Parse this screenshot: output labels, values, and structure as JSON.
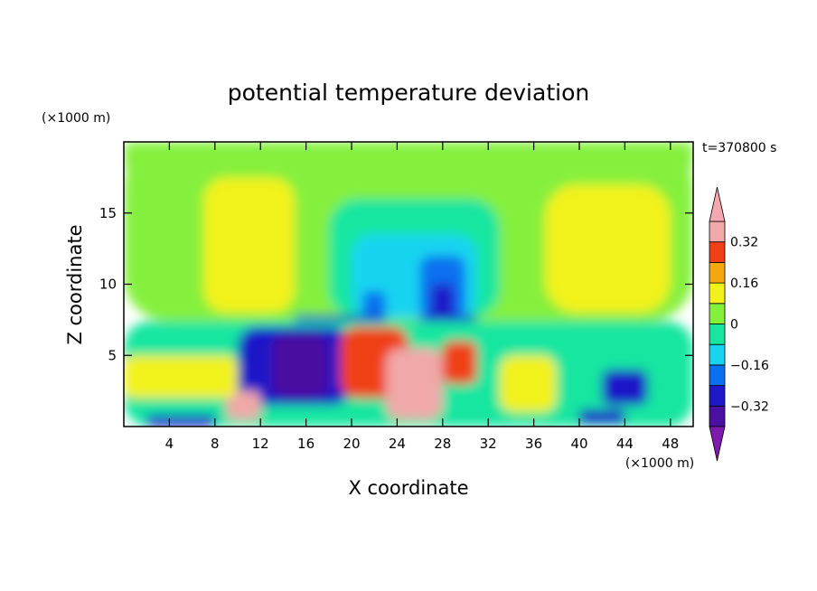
{
  "chart_data": {
    "type": "heatmap",
    "title": "potential temperature deviation",
    "xlabel": "X coordinate",
    "ylabel": "Z coordinate",
    "x_unit": "(×1000 m)",
    "y_unit": "(×1000 m)",
    "time_label": "t=370800 s",
    "xlim": [
      0,
      50
    ],
    "ylim": [
      0,
      20
    ],
    "x_ticks": [
      4,
      8,
      12,
      16,
      20,
      24,
      28,
      32,
      36,
      40,
      44,
      48
    ],
    "y_ticks": [
      5,
      10,
      15
    ],
    "colorbar": {
      "levels": [
        -0.4,
        -0.32,
        -0.24,
        -0.16,
        -0.08,
        0,
        0.08,
        0.16,
        0.24,
        0.32,
        0.4
      ],
      "tick_labels": [
        "0.32",
        "0.16",
        "0",
        "−0.16",
        "−0.32"
      ],
      "tick_values": [
        0.32,
        0.16,
        0,
        -0.16,
        -0.32
      ],
      "colors": [
        "#7e1ab0",
        "#4a10a0",
        "#1f18c8",
        "#0b70f0",
        "#18d4f0",
        "#18e6a0",
        "#84f03c",
        "#f2f21a",
        "#f5a80e",
        "#f04018",
        "#f0a8a8",
        "#f5a8b0"
      ],
      "extend": "both"
    },
    "regions": [
      {
        "x0": 0,
        "x1": 50,
        "z0": 7.4,
        "z1": 20,
        "value": 0.04
      },
      {
        "x0": 0,
        "x1": 50,
        "z0": 18,
        "z1": 20,
        "value": 0.02
      },
      {
        "x0": 7,
        "x1": 15,
        "z0": 8,
        "z1": 17.5,
        "value": 0.12
      },
      {
        "x0": 37,
        "x1": 48,
        "z0": 8,
        "z1": 17,
        "value": 0.1
      },
      {
        "x0": 18,
        "x1": 33,
        "z0": 7.6,
        "z1": 16,
        "value": -0.02
      },
      {
        "x0": 20,
        "x1": 31,
        "z0": 7.6,
        "z1": 13.5,
        "value": -0.12
      },
      {
        "x0": 26,
        "x1": 30,
        "z0": 7.6,
        "z1": 12,
        "value": -0.22
      },
      {
        "x0": 27,
        "x1": 29,
        "z0": 7.6,
        "z1": 10,
        "value": -0.3
      },
      {
        "x0": 21,
        "x1": 23,
        "z0": 7.6,
        "z1": 9.5,
        "value": -0.22
      },
      {
        "x0": 15,
        "x1": 23,
        "z0": 7.4,
        "z1": 7.8,
        "value": -0.3
      },
      {
        "x0": 26,
        "x1": 31,
        "z0": 7.4,
        "z1": 7.8,
        "value": -0.3
      },
      {
        "x0": 0,
        "x1": 50,
        "z0": 0,
        "z1": 7.4,
        "value": -0.05
      },
      {
        "x0": 10,
        "x1": 20,
        "z0": 1.5,
        "z1": 7,
        "value": -0.3
      },
      {
        "x0": 13,
        "x1": 18,
        "z0": 2,
        "z1": 6.5,
        "value": -0.36
      },
      {
        "x0": 19,
        "x1": 25,
        "z0": 2,
        "z1": 7,
        "value": 0.3
      },
      {
        "x0": 23,
        "x1": 28,
        "z0": 0.5,
        "z1": 5.5,
        "value": 0.38
      },
      {
        "x0": 28,
        "x1": 31,
        "z0": 3,
        "z1": 6,
        "value": 0.3
      },
      {
        "x0": 9,
        "x1": 12,
        "z0": 0.5,
        "z1": 2.5,
        "value": 0.36
      },
      {
        "x0": 0,
        "x1": 10,
        "z0": 2,
        "z1": 5,
        "value": 0.15
      },
      {
        "x0": 33,
        "x1": 38,
        "z0": 1,
        "z1": 5,
        "value": 0.1
      },
      {
        "x0": 42,
        "x1": 46,
        "z0": 1.5,
        "z1": 4,
        "value": -0.3
      },
      {
        "x0": 40,
        "x1": 44,
        "z0": 0.2,
        "z1": 1.2,
        "value": -0.3
      },
      {
        "x0": 2,
        "x1": 8,
        "z0": 0,
        "z1": 0.8,
        "value": -0.32
      }
    ]
  }
}
